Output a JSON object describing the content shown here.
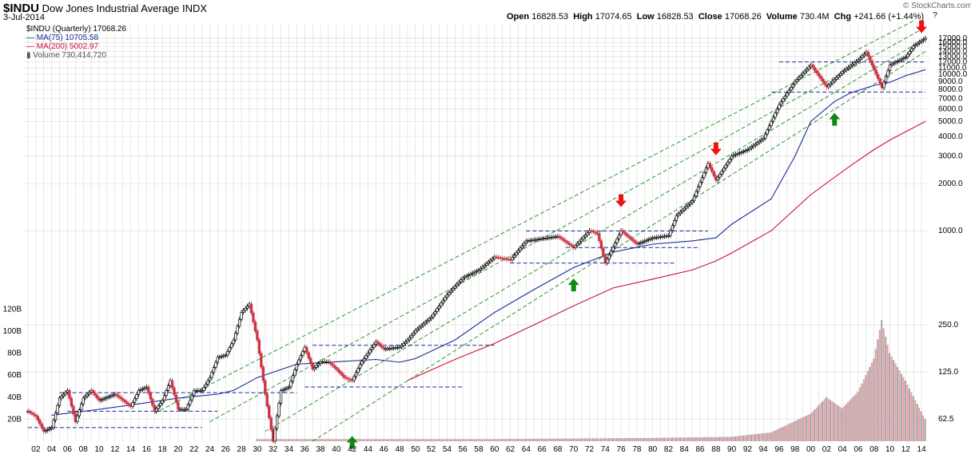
{
  "header": {
    "symbol": "$INDU",
    "name": "Dow Jones Industrial Average",
    "exchange": "INDX",
    "date": "3-Jul-2014",
    "brand": "© StockCharts.com",
    "ohlc": {
      "open_label": "Open",
      "open": "16828.53",
      "high_label": "High",
      "high": "17074.65",
      "low_label": "Low",
      "low": "16828.53",
      "close_label": "Close",
      "close": "17068.26",
      "volume_label": "Volume",
      "volume": "730.4M",
      "chg_label": "Chg",
      "chg": "+241.66 (+1.44%)"
    }
  },
  "legend": {
    "price": "$INDU (Quarterly) 17068.26",
    "ma75": "MA(75) 10705.58",
    "ma200": "MA(200) 5002.97",
    "volume": "Volume 730,414,720"
  },
  "colors": {
    "price": "#000000",
    "down": "#cc3344",
    "ma75": "#1a2a99",
    "ma200": "#cc1133",
    "channel": "#2a9a2a",
    "support": "#1a2a99",
    "volume": "#e8a0a8",
    "volume_gray": "#aaaaaa",
    "arrow_up": "#118811",
    "arrow_down": "#ee1111",
    "grid": "#d8d8d8"
  },
  "chart_data": {
    "type": "line",
    "title": "$INDU Dow Jones Industrial Average INDX",
    "yscale": "log",
    "ylim": [
      45,
      21000
    ],
    "y_ticks_right": [
      62.5,
      125.0,
      250.0,
      1000.0,
      2000.0,
      3000.0,
      4000.0,
      5000.0,
      6000.0,
      7000.0,
      8000.0,
      9000.0,
      10000.0,
      11000.0,
      12000.0,
      13000.0,
      14000.0,
      15000.0,
      16000.0,
      17000.0
    ],
    "volume_ticks_left": [
      "20B",
      "40B",
      "60B",
      "80B",
      "100B",
      "120B"
    ],
    "x_ticks": [
      "02",
      "04",
      "06",
      "08",
      "10",
      "12",
      "14",
      "16",
      "18",
      "20",
      "22",
      "24",
      "26",
      "28",
      "30",
      "32",
      "34",
      "36",
      "38",
      "40",
      "42",
      "44",
      "46",
      "48",
      "50",
      "52",
      "54",
      "56",
      "58",
      "60",
      "62",
      "64",
      "66",
      "68",
      "70",
      "72",
      "74",
      "76",
      "78",
      "80",
      "82",
      "84",
      "86",
      "88",
      "90",
      "92",
      "94",
      "96",
      "98",
      "00",
      "02",
      "04",
      "06",
      "08",
      "10",
      "12",
      "14"
    ],
    "price_series": {
      "name": "$INDU (Quarterly)",
      "x": [
        1901,
        1902,
        1903,
        1904,
        1905,
        1906,
        1907,
        1908,
        1909,
        1910,
        1912,
        1914,
        1915,
        1916,
        1917,
        1918,
        1919,
        1920,
        1921,
        1922,
        1923,
        1924,
        1925,
        1926,
        1927,
        1928,
        1929,
        1930,
        1931,
        1932,
        1933,
        1934,
        1935,
        1936,
        1937,
        1938,
        1939,
        1940,
        1941,
        1942,
        1943,
        1945,
        1946,
        1948,
        1949,
        1950,
        1952,
        1954,
        1956,
        1958,
        1960,
        1962,
        1964,
        1966,
        1968,
        1970,
        1972,
        1973,
        1974,
        1976,
        1978,
        1980,
        1982,
        1983,
        1985,
        1987,
        1988,
        1990,
        1992,
        1994,
        1996,
        1998,
        2000,
        2002,
        2004,
        2006,
        2007,
        2009,
        2010,
        2012,
        2013,
        2014.5
      ],
      "y": [
        70,
        65,
        52,
        55,
        85,
        95,
        60,
        85,
        95,
        82,
        90,
        75,
        95,
        100,
        70,
        82,
        110,
        72,
        72,
        95,
        95,
        115,
        155,
        160,
        200,
        300,
        340,
        200,
        90,
        45,
        95,
        100,
        140,
        180,
        130,
        145,
        145,
        130,
        115,
        110,
        140,
        195,
        175,
        180,
        200,
        230,
        280,
        390,
        500,
        560,
        680,
        650,
        860,
        890,
        920,
        780,
        1000,
        960,
        620,
        1000,
        820,
        900,
        930,
        1250,
        1550,
        2700,
        2100,
        3000,
        3300,
        3900,
        6400,
        9000,
        11500,
        8300,
        10400,
        12400,
        13900,
        8200,
        11500,
        12900,
        15200,
        17068
      ]
    },
    "ma75_series": {
      "name": "MA(75)",
      "x": [
        1904,
        1910,
        1915,
        1920,
        1925,
        1927,
        1930,
        1935,
        1940,
        1945,
        1948,
        1950,
        1955,
        1960,
        1965,
        1970,
        1975,
        1980,
        1985,
        1988,
        1990,
        1995,
        1998,
        2000,
        2003,
        2005,
        2008,
        2010,
        2012,
        2014.5
      ],
      "y": [
        66,
        72,
        78,
        85,
        90,
        95,
        115,
        140,
        145,
        150,
        144,
        152,
        200,
        300,
        420,
        580,
        730,
        820,
        860,
        900,
        1100,
        1600,
        3000,
        5000,
        6700,
        7600,
        8500,
        8900,
        9800,
        10705
      ]
    },
    "ma200_series": {
      "name": "MA(200)",
      "x": [
        1949,
        1955,
        1960,
        1965,
        1970,
        1975,
        1980,
        1985,
        1988,
        1990,
        1995,
        2000,
        2005,
        2008,
        2010,
        2014.5
      ],
      "y": [
        110,
        150,
        190,
        250,
        330,
        430,
        490,
        560,
        640,
        720,
        1000,
        1700,
        2600,
        3300,
        3800,
        5003
      ]
    },
    "volume_series": {
      "name": "Volume",
      "x": [
        1930,
        1960,
        1980,
        1990,
        1995,
        2000,
        2002,
        2004,
        2006,
        2008,
        2009,
        2010,
        2012,
        2014.5
      ],
      "y_billions": [
        2,
        2,
        3,
        4,
        8,
        25,
        40,
        30,
        45,
        75,
        110,
        80,
        55,
        20
      ]
    },
    "channels": [
      {
        "x": [
          1917,
          2013
        ],
        "y": [
          68,
          22000
        ]
      },
      {
        "x": [
          1924,
          2014.5
        ],
        "y": [
          60,
          20000
        ]
      },
      {
        "x": [
          1931,
          2014.5
        ],
        "y": [
          52,
          17000
        ]
      },
      {
        "x": [
          1937,
          2014.5
        ],
        "y": [
          45,
          14000
        ]
      }
    ],
    "support_lines": [
      {
        "x": [
          1901,
          1923
        ],
        "y": [
          55,
          55
        ]
      },
      {
        "x": [
          1906,
          1925
        ],
        "y": [
          70,
          70
        ]
      },
      {
        "x": [
          1905,
          1935
        ],
        "y": [
          92,
          92
        ]
      },
      {
        "x": [
          1936,
          1956
        ],
        "y": [
          100,
          100
        ]
      },
      {
        "x": [
          1937,
          1960
        ],
        "y": [
          185,
          185
        ]
      },
      {
        "x": [
          1962,
          1983
        ],
        "y": [
          620,
          620
        ]
      },
      {
        "x": [
          1964,
          1987
        ],
        "y": [
          995,
          995
        ]
      },
      {
        "x": [
          1969,
          1986
        ],
        "y": [
          780,
          780
        ]
      },
      {
        "x": [
          1996,
          2014.5
        ],
        "y": [
          12000,
          12000
        ]
      },
      {
        "x": [
          1995,
          2014.5
        ],
        "y": [
          7700,
          7700
        ]
      }
    ],
    "annotations": {
      "up_arrows": [
        {
          "x": 1942,
          "y": 60
        },
        {
          "x": 1970,
          "y": 610
        },
        {
          "x": 2003,
          "y": 7000
        }
      ],
      "down_arrows": [
        {
          "x": 1976,
          "y": 1350
        },
        {
          "x": 1988,
          "y": 2900
        },
        {
          "x": 2014,
          "y": 17500
        }
      ],
      "question_mark": "?"
    }
  }
}
